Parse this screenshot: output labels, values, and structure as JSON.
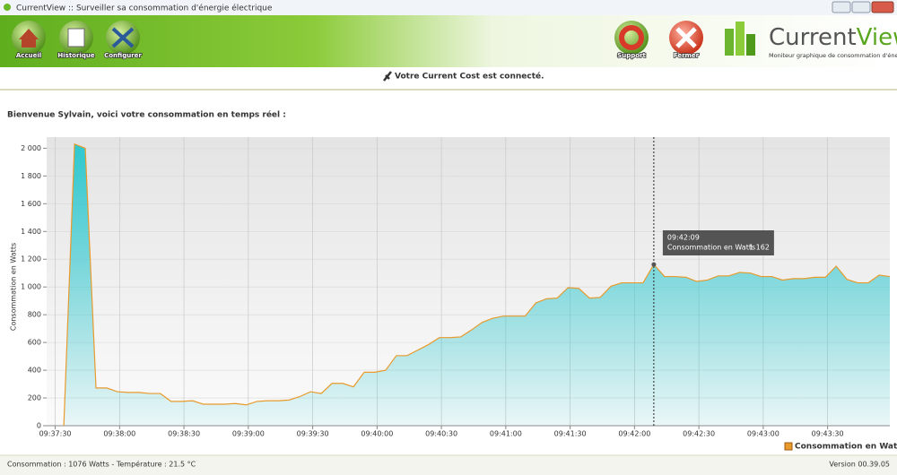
{
  "window": {
    "title": "CurrentView :: Surveiller sa consommation d'énergie électrique"
  },
  "toolbar": {
    "left": [
      "Accueil",
      "Historique",
      "Configurer"
    ],
    "right": [
      "Support",
      "Fermer"
    ]
  },
  "logo": {
    "name_part1": "Current",
    "name_part2": "View",
    "tagline": "Moniteur graphique de consommation d'énergie"
  },
  "status": "Votre Current Cost est connecté.",
  "welcome": "Bienvenue Sylvain, voici votre consommation en temps réel :",
  "chart_data": {
    "type": "area",
    "y_label": "Consommation en Watts",
    "ylim": [
      0,
      2080
    ],
    "yticks": [
      0,
      200,
      400,
      600,
      800,
      {
        "value": 1000,
        "label": "1 000"
      },
      {
        "value": 1200,
        "label": "1 200"
      },
      {
        "value": 1400,
        "label": "1 400"
      },
      {
        "value": 1600,
        "label": "1 600"
      },
      {
        "value": 1800,
        "label": "1 800"
      },
      {
        "value": 2000,
        "label": "2 000"
      }
    ],
    "xlim": [
      "09:37:26",
      "09:43:59"
    ],
    "xticks": [
      "09:37:30",
      "09:38:00",
      "09:38:30",
      "09:39:00",
      "09:39:30",
      "09:40:00",
      "09:40:30",
      "09:41:00",
      "09:41:30",
      "09:42:00",
      "09:42:30",
      "09:43:00",
      "09:43:30"
    ],
    "grid": true,
    "legend": "bottom-right",
    "x": [
      "09:37:34",
      "09:37:39",
      "09:37:44",
      "09:37:49",
      "09:37:54",
      "09:37:59",
      "09:38:04",
      "09:38:09",
      "09:38:14",
      "09:38:19",
      "09:38:24",
      "09:38:29",
      "09:38:34",
      "09:38:39",
      "09:38:44",
      "09:38:49",
      "09:38:54",
      "09:38:59",
      "09:39:04",
      "09:39:09",
      "09:39:14",
      "09:39:19",
      "09:39:24",
      "09:39:29",
      "09:39:34",
      "09:39:39",
      "09:39:44",
      "09:39:49",
      "09:39:54",
      "09:39:59",
      "09:40:04",
      "09:40:09",
      "09:40:14",
      "09:40:19",
      "09:40:24",
      "09:40:29",
      "09:40:34",
      "09:40:39",
      "09:40:44",
      "09:40:49",
      "09:40:54",
      "09:40:59",
      "09:41:04",
      "09:41:09",
      "09:41:14",
      "09:41:19",
      "09:41:24",
      "09:41:29",
      "09:41:34",
      "09:41:39",
      "09:41:44",
      "09:41:49",
      "09:41:54",
      "09:41:59",
      "09:42:04",
      "09:42:09",
      "09:42:14",
      "09:42:19",
      "09:42:24",
      "09:42:29",
      "09:42:34",
      "09:42:39",
      "09:42:44",
      "09:42:49",
      "09:42:54",
      "09:42:59",
      "09:43:04",
      "09:43:09",
      "09:43:14",
      "09:43:19",
      "09:43:24",
      "09:43:29",
      "09:43:34",
      "09:43:39",
      "09:43:44",
      "09:43:49",
      "09:43:54",
      "09:43:59"
    ],
    "series": [
      {
        "name": "Consommation en Watts",
        "color": "#e89a2c",
        "fill": "#2ec8cf",
        "values": [
          0,
          2030,
          2000,
          272,
          272,
          245,
          240,
          240,
          232,
          232,
          175,
          175,
          180,
          155,
          155,
          155,
          160,
          150,
          175,
          180,
          180,
          185,
          210,
          245,
          232,
          305,
          305,
          280,
          385,
          385,
          400,
          505,
          505,
          545,
          585,
          635,
          635,
          640,
          690,
          745,
          775,
          790,
          790,
          790,
          885,
          915,
          920,
          995,
          990,
          920,
          925,
          1005,
          1030,
          1030,
          1030,
          1162,
          1075,
          1075,
          1070,
          1040,
          1050,
          1080,
          1080,
          1105,
          1100,
          1075,
          1075,
          1050,
          1060,
          1060,
          1070,
          1070,
          1150,
          1055,
          1030,
          1030,
          1085,
          1075
        ]
      }
    ],
    "tooltip": {
      "time": "09:42:09",
      "value": {
        "value": 1162,
        "label": "1 162"
      }
    }
  },
  "footer": {
    "left": "Consommation : 1076 Watts - Température : 21.5 °C",
    "right": "Version 00.39.05"
  }
}
